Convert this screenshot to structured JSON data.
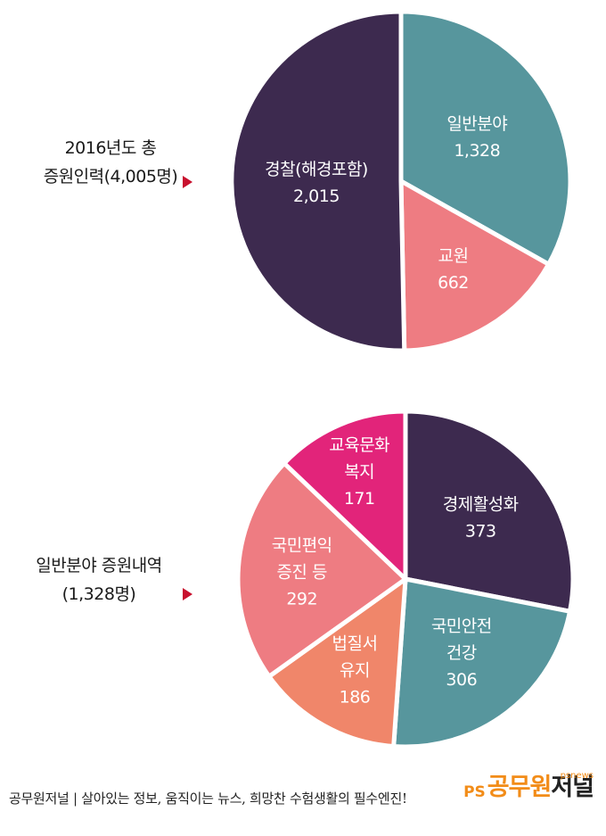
{
  "chart_data": [
    {
      "type": "pie",
      "label_lines": [
        "2016년도 총",
        "증원인력(4,005명)"
      ],
      "slices": [
        {
          "label_lines": [
            "일반분야"
          ],
          "value": 1328,
          "value_text": "1,328",
          "color": "#57969d"
        },
        {
          "label_lines": [
            "교원"
          ],
          "value": 662,
          "value_text": "662",
          "color": "#ee7c82"
        },
        {
          "label_lines": [
            "경찰(해경포함)"
          ],
          "value": 2015,
          "value_text": "2,015",
          "color": "#3d2a4f"
        }
      ]
    },
    {
      "type": "pie",
      "label_lines": [
        "일반분야 증원내역",
        "(1,328명)"
      ],
      "slices": [
        {
          "label_lines": [
            "경제활성화"
          ],
          "value": 373,
          "value_text": "373",
          "color": "#3d2a4f"
        },
        {
          "label_lines": [
            "국민안전",
            "건강"
          ],
          "value": 306,
          "value_text": "306",
          "color": "#57969d"
        },
        {
          "label_lines": [
            "법질서",
            "유지"
          ],
          "value": 186,
          "value_text": "186",
          "color": "#f0866a"
        },
        {
          "label_lines": [
            "국민편익",
            "증진 등"
          ],
          "value": 292,
          "value_text": "292",
          "color": "#ee7c82"
        },
        {
          "label_lines": [
            "교육문화",
            "복지"
          ],
          "value": 171,
          "value_text": "171",
          "color": "#e2247a"
        }
      ]
    }
  ],
  "footer": {
    "text": "공무원저널 | 살아있는 정보, 움직이는 뉴스, 희망찬 수험생활의 필수엔진!"
  },
  "logo": {
    "mark": "PS",
    "name_highlight": "공무원",
    "name_rest": "저널",
    "sub": "psnews"
  },
  "colors": {
    "arrow": "#c8102e",
    "separator": "#ffffff"
  }
}
